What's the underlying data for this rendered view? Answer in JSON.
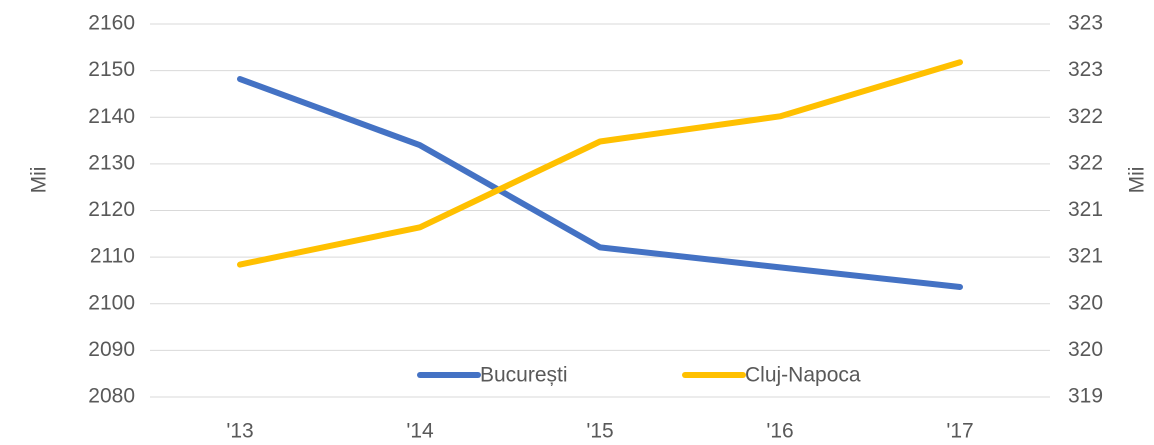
{
  "chart_data": {
    "type": "line",
    "categories": [
      "'13",
      "'14",
      "'15",
      "'16",
      "'17"
    ],
    "ylabel": "Mii",
    "y2label": "Mii",
    "ylim": [
      2080,
      2160
    ],
    "yticks": [
      2080,
      2090,
      2100,
      2110,
      2120,
      2130,
      2140,
      2150,
      2160
    ],
    "y2lim": [
      319,
      323
    ],
    "y2ticks": [
      {
        "value": 319,
        "label": "319"
      },
      {
        "value": 319.5,
        "label": "320"
      },
      {
        "value": 320,
        "label": "320"
      },
      {
        "value": 320.5,
        "label": "321"
      },
      {
        "value": 321,
        "label": "321"
      },
      {
        "value": 321.5,
        "label": "322"
      },
      {
        "value": 322,
        "label": "322"
      },
      {
        "value": 322.5,
        "label": "323"
      },
      {
        "value": 323,
        "label": "323"
      }
    ],
    "grid": true,
    "legend": "bottom",
    "series": [
      {
        "name": "București",
        "color": "#4472c4",
        "values": [
          2148.2,
          2134,
          2112.1,
          2107.8,
          2103.6
        ]
      },
      {
        "name": "Cluj-Napoca",
        "color": "#ffc000",
        "axis": "y2",
        "values": [
          320.42,
          320.82,
          321.74,
          322.01,
          322.59
        ]
      }
    ]
  }
}
